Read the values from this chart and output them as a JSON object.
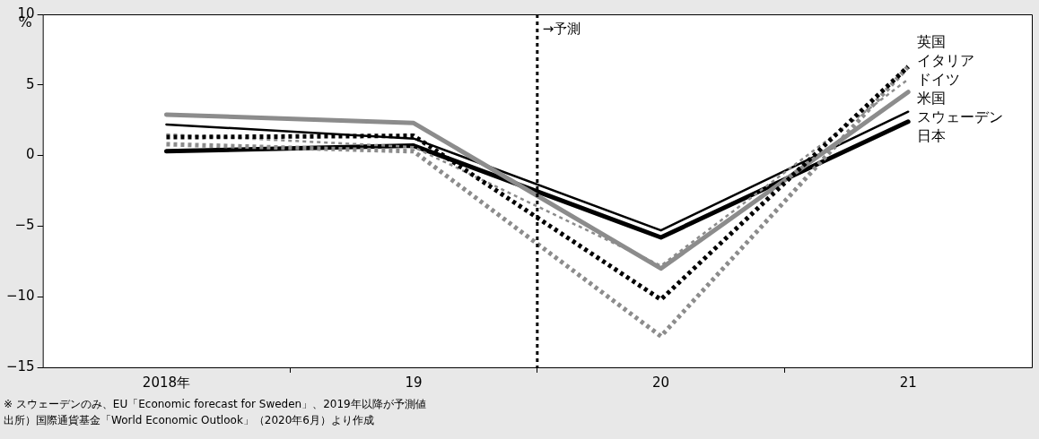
{
  "chart_data": {
    "type": "line",
    "ylabel": "%",
    "x": [
      2018,
      2019,
      2020,
      2021
    ],
    "xlim": [
      2017.5,
      2021.5
    ],
    "xticks": [
      {
        "value": 2018,
        "label": "2018年"
      },
      {
        "value": 2018.5,
        "label": null
      },
      {
        "value": 2019,
        "label": "19"
      },
      {
        "value": 2019.5,
        "label": null
      },
      {
        "value": 2020,
        "label": "20"
      },
      {
        "value": 2020.5,
        "label": null
      },
      {
        "value": 2021,
        "label": "21"
      }
    ],
    "ylim": [
      -15,
      10
    ],
    "yticks": [
      {
        "value": -15,
        "label": "−15"
      },
      {
        "value": -10,
        "label": "−10"
      },
      {
        "value": -5,
        "label": "−5"
      },
      0,
      5,
      10
    ],
    "series": [
      {
        "name": "英国",
        "color": "#000000",
        "line_style": "dotted",
        "values": [
          1.3,
          1.4,
          -10.2,
          6.3
        ]
      },
      {
        "name": "イタリア",
        "color": "#8c8c8c",
        "line_style": "dotted",
        "values": [
          0.8,
          0.3,
          -12.8,
          6.3
        ]
      },
      {
        "name": "ドイツ",
        "color": "#8c8c8c",
        "line_style": "dotted",
        "values": [
          1.5,
          0.6,
          -7.8,
          5.4
        ]
      },
      {
        "name": "米国",
        "color": "#8c8c8c",
        "line_style": "solid",
        "values": [
          2.9,
          2.3,
          -8.0,
          4.5
        ]
      },
      {
        "name": "スウェーデン",
        "color": "#000000",
        "line_style": "solid",
        "values": [
          2.2,
          1.2,
          -5.3,
          3.1
        ]
      },
      {
        "name": "日本",
        "color": "#000000",
        "line_style": "solid",
        "values": [
          0.3,
          0.7,
          -5.8,
          2.4
        ]
      }
    ],
    "ref_lines": [
      {
        "axis": "x",
        "value": 2019.5,
        "label": "→予測",
        "color": "#000000",
        "line_style": "dotted"
      }
    ],
    "grid": false,
    "legend": false,
    "marker": "none",
    "annotations": [
      "※ スウェーデンのみ、EU「Economic forecast for Sweden」、2019年以降が予測値",
      "出所）国際通貨基金「World Economic Outlook」（2020年6月）より作成"
    ]
  }
}
